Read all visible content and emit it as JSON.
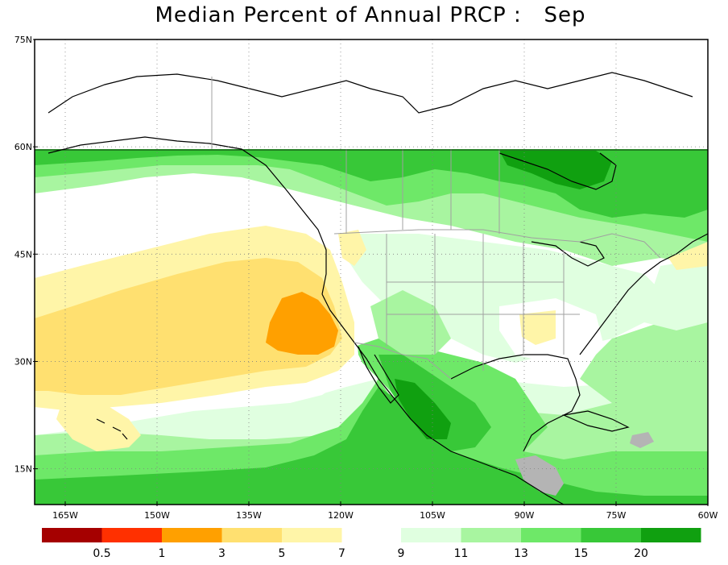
{
  "title": "Median Percent of Annual PRCP :   Sep",
  "map": {
    "lat_labels": [
      "75N",
      "60N",
      "45N",
      "30N",
      "15N"
    ],
    "lat_values": [
      75,
      60,
      45,
      30,
      15
    ],
    "lon_labels": [
      "165W",
      "150W",
      "135W",
      "120W",
      "105W",
      "90W",
      "75W",
      "60W"
    ],
    "lon_values": [
      -165,
      -150,
      -135,
      -120,
      -105,
      -90,
      -75,
      -60
    ],
    "lat_range": [
      10,
      75
    ],
    "lon_range": [
      -170,
      -60
    ],
    "grid": "dotted"
  },
  "legend": {
    "left_group": [
      {
        "color": "#a50000",
        "label": ""
      },
      {
        "color": "#ff3000",
        "label": "0.5"
      },
      {
        "color": "#ffa000",
        "label": "1"
      },
      {
        "color": "#ffe070",
        "label": "3"
      },
      {
        "color": "#fff5a8",
        "label": "5"
      }
    ],
    "left_end_label": "7",
    "right_group": [
      {
        "color": "#e0ffe0",
        "label": "9"
      },
      {
        "color": "#a8f5a0",
        "label": "11"
      },
      {
        "color": "#6ee868",
        "label": "13"
      },
      {
        "color": "#38c838",
        "label": "15"
      },
      {
        "color": "#10a010",
        "label": "20"
      }
    ]
  },
  "colors": {
    "c0": "#a50000",
    "c1": "#ff3000",
    "c2": "#ffa000",
    "c3": "#ffe070",
    "c4": "#fff5a8",
    "white": "#ffffff",
    "g1": "#e0ffe0",
    "g2": "#a8f5a0",
    "g3": "#6ee868",
    "g4": "#38c838",
    "g5": "#10a010",
    "nodata": "#b4b4b4"
  }
}
